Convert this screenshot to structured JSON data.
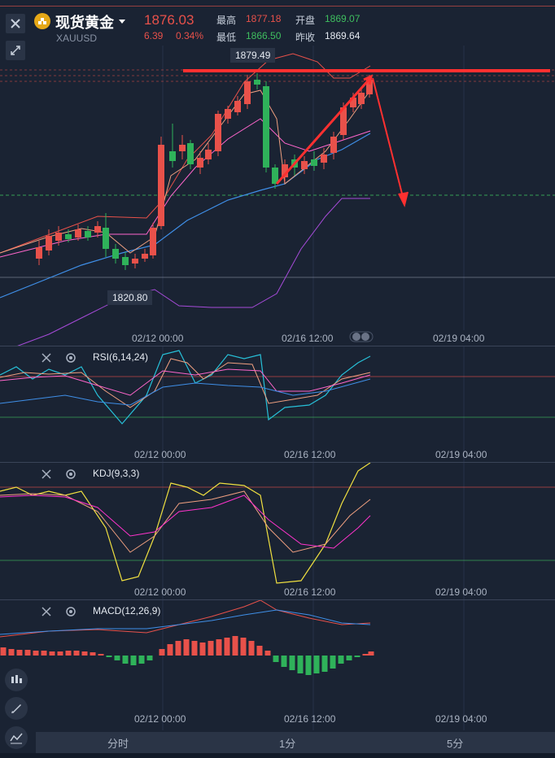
{
  "header": {
    "title": "现货黄金",
    "code": "XAUUSD",
    "price": "1876.03",
    "change": "6.39",
    "change_pct": "0.34%",
    "high_label": "最高",
    "high_value": "1877.18",
    "low_label": "最低",
    "low_value": "1866.50",
    "open_label": "开盘",
    "open_value": "1869.07",
    "prev_close_label": "昨收",
    "prev_close_value": "1869.64"
  },
  "main_chart": {
    "high_marker": "1879.49",
    "low_marker": "1820.80",
    "time_labels": [
      "02/12 00:00",
      "02/16 12:00",
      "02/19 04:00"
    ]
  },
  "indicators": {
    "rsi": {
      "label": "RSI(6,14,24)",
      "time_labels": [
        "02/12 00:00",
        "02/16 12:00",
        "02/19 04:00"
      ]
    },
    "kdj": {
      "label": "KDJ(9,3,3)",
      "time_labels": [
        "02/12 00:00",
        "02/16 12:00",
        "02/19 04:00"
      ]
    },
    "macd": {
      "label": "MACD(12,26,9)",
      "time_labels": [
        "02/12 00:00",
        "02/16 12:00",
        "02/19 04:00"
      ]
    }
  },
  "bottom_tabs": [
    "分时",
    "1分",
    "5分"
  ],
  "colors": {
    "up": "#e8514a",
    "down": "#2fb25a",
    "background": "#1a2333"
  }
}
